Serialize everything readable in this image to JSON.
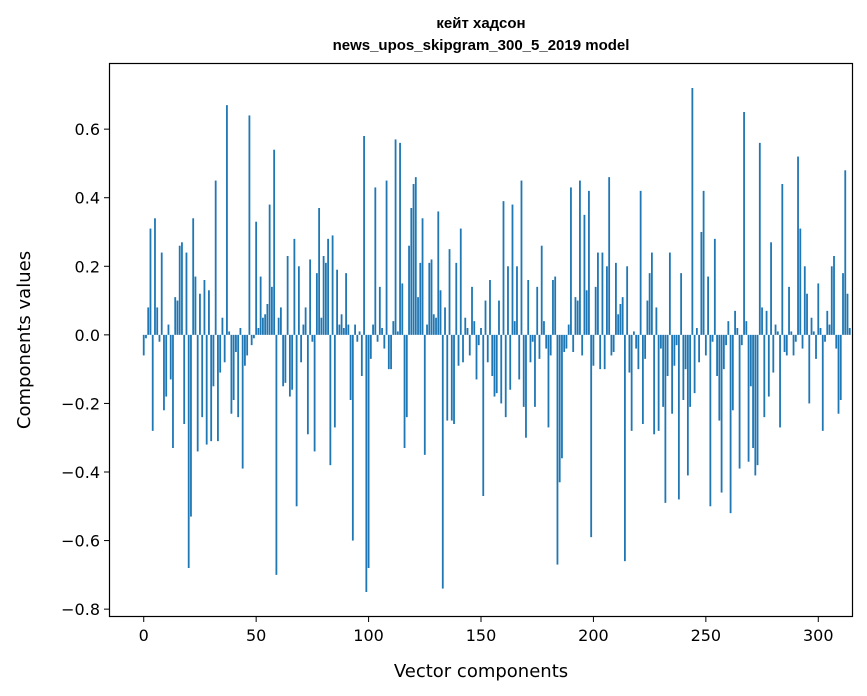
{
  "chart_data": {
    "type": "bar",
    "title": "кейт хадсон",
    "subtitle": "news_upos_skipgram_300_5_2019 model",
    "xlabel": "Vector components",
    "ylabel": "Components values",
    "xlim": [
      -15,
      315
    ],
    "ylim": [
      -0.82,
      0.79
    ],
    "x_ticks": [
      {
        "value": 0,
        "label": "0"
      },
      {
        "value": 50,
        "label": "50"
      },
      {
        "value": 100,
        "label": "100"
      },
      {
        "value": 150,
        "label": "150"
      },
      {
        "value": 200,
        "label": "200"
      },
      {
        "value": 250,
        "label": "250"
      },
      {
        "value": 300,
        "label": "300"
      }
    ],
    "y_ticks": [
      {
        "value": 0.6,
        "label": "0.6"
      },
      {
        "value": 0.4,
        "label": "0.4"
      },
      {
        "value": 0.2,
        "label": "0.2"
      },
      {
        "value": 0.0,
        "label": "0.0"
      },
      {
        "value": -0.2,
        "label": "−0.2"
      },
      {
        "value": -0.4,
        "label": "−0.4"
      },
      {
        "value": -0.6,
        "label": "−0.6"
      },
      {
        "value": -0.8,
        "label": "−0.8"
      }
    ],
    "grid": false,
    "bar_color": "#1f77b4",
    "values": [
      -0.06,
      -0.01,
      0.08,
      0.31,
      -0.28,
      0.34,
      0.08,
      -0.02,
      0.24,
      -0.22,
      -0.18,
      0.03,
      -0.13,
      -0.33,
      0.11,
      0.1,
      0.26,
      0.27,
      -0.26,
      0.24,
      -0.68,
      -0.53,
      0.34,
      0.17,
      -0.34,
      0.12,
      -0.24,
      0.16,
      -0.32,
      0.13,
      -0.31,
      -0.15,
      0.45,
      -0.31,
      -0.11,
      0.05,
      -0.08,
      0.67,
      0.01,
      -0.23,
      -0.19,
      -0.05,
      -0.24,
      0.02,
      -0.39,
      -0.09,
      -0.06,
      0.64,
      -0.03,
      -0.01,
      0.33,
      0.02,
      0.17,
      0.05,
      0.06,
      0.09,
      0.38,
      0.14,
      0.54,
      -0.7,
      0.05,
      0.08,
      -0.15,
      -0.14,
      0.23,
      -0.18,
      -0.16,
      0.28,
      -0.5,
      0.2,
      -0.08,
      0.03,
      0.08,
      -0.29,
      0.22,
      -0.02,
      -0.34,
      0.18,
      0.37,
      0.05,
      0.23,
      0.21,
      0.28,
      -0.38,
      0.29,
      -0.27,
      0.19,
      0.03,
      0.06,
      0.02,
      0.18,
      0.03,
      -0.19,
      -0.6,
      0.03,
      -0.02,
      0.01,
      -0.12,
      0.58,
      -0.75,
      -0.68,
      -0.07,
      0.03,
      0.43,
      -0.02,
      0.14,
      0.02,
      -0.04,
      0.45,
      -0.1,
      -0.1,
      0.04,
      0.57,
      0.01,
      0.56,
      0.15,
      -0.33,
      -0.24,
      0.26,
      0.37,
      0.44,
      0.46,
      0.11,
      0.21,
      0.34,
      -0.35,
      0.03,
      0.21,
      0.22,
      0.06,
      0.05,
      0.36,
      0.13,
      -0.74,
      0.08,
      -0.25,
      0.25,
      -0.25,
      -0.26,
      0.21,
      -0.09,
      0.31,
      -0.08,
      0.05,
      0.02,
      -0.06,
      0.14,
      0.04,
      -0.13,
      -0.03,
      0.02,
      -0.47,
      0.1,
      -0.08,
      0.16,
      -0.12,
      -0.18,
      -0.17,
      0.1,
      -0.2,
      0.39,
      -0.24,
      0.2,
      -0.16,
      0.38,
      0.04,
      0.2,
      -0.13,
      0.45,
      -0.21,
      -0.3,
      0.16,
      -0.08,
      -0.02,
      -0.21,
      0.14,
      -0.07,
      0.26,
      0.04,
      -0.04,
      -0.27,
      -0.06,
      0.16,
      0.17,
      -0.67,
      -0.43,
      -0.36,
      -0.05,
      -0.04,
      0.03,
      0.43,
      -0.05,
      0.11,
      0.1,
      0.45,
      -0.06,
      0.35,
      0.13,
      0.42,
      -0.59,
      -0.09,
      0.14,
      0.24,
      -0.1,
      0.24,
      -0.1,
      0.2,
      0.46,
      -0.06,
      -0.05,
      0.21,
      0.06,
      0.09,
      0.11,
      -0.66,
      0.2,
      -0.11,
      -0.28,
      0.01,
      -0.04,
      -0.1,
      0.42,
      -0.26,
      -0.07,
      0.1,
      0.18,
      0.24,
      -0.29,
      0.08,
      -0.28,
      -0.04,
      -0.21,
      -0.49,
      -0.12,
      0.24,
      -0.23,
      -0.09,
      -0.03,
      -0.48,
      0.18,
      -0.19,
      -0.1,
      -0.41,
      -0.21,
      0.72,
      -0.17,
      0.02,
      -0.08,
      0.3,
      0.42,
      -0.06,
      0.17,
      -0.5,
      -0.02,
      0.28,
      -0.12,
      -0.25,
      -0.46,
      -0.1,
      -0.03,
      0.04,
      -0.52,
      -0.22,
      0.07,
      0.02,
      -0.39,
      -0.03,
      0.65,
      0.04,
      -0.37,
      -0.15,
      -0.33,
      -0.41,
      -0.38,
      0.56,
      0.08,
      -0.24,
      0.07,
      -0.18,
      0.27,
      -0.11,
      0.03,
      0.01,
      -0.27,
      0.44,
      -0.05,
      -0.06,
      0.14,
      0.01,
      -0.06,
      -0.02,
      0.52,
      0.31,
      -0.04,
      0.2,
      0.12,
      -0.2,
      0.05,
      0.01,
      -0.07,
      0.15,
      0.02,
      -0.28,
      -0.02,
      0.07,
      0.03,
      0.2,
      0.23,
      -0.04,
      -0.23,
      -0.19,
      0.18,
      0.48,
      0.12,
      0.02
    ]
  }
}
